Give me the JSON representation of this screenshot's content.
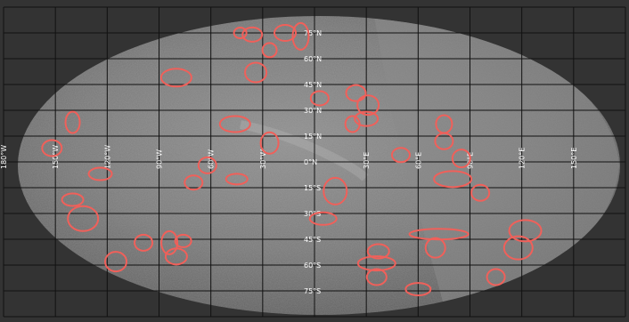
{
  "map": {
    "projection": "hammer-aitoff",
    "colors": {
      "background": "#333333",
      "grid": "#111111",
      "surface_dark": "#444444",
      "surface_mid": "#7a7a7a",
      "surface_light": "#aaaaaa",
      "circle": "#f0605a",
      "label": "#ffffff"
    },
    "lat_labels": [
      "75°N",
      "60°N",
      "45°N",
      "30°N",
      "15°N",
      "0°N",
      "15°S",
      "30°S",
      "45°S",
      "60°S",
      "75°S"
    ],
    "lon_labels": [
      "180°W",
      "150°W",
      "120°W",
      "90°W",
      "60°W",
      "30°W",
      "30°E",
      "60°E",
      "90°E",
      "120°E",
      "150°E"
    ],
    "features_count_label": "",
    "crater_markers": [
      {
        "lon": -43,
        "lat": 75
      },
      {
        "lon": -36,
        "lat": 74
      },
      {
        "lon": -17,
        "lat": 75
      },
      {
        "lon": -8,
        "lat": 73
      },
      {
        "lon": -26,
        "lat": 65
      },
      {
        "lon": -80,
        "lat": 49
      },
      {
        "lon": -34,
        "lat": 52
      },
      {
        "lon": 3,
        "lat": 37
      },
      {
        "lon": 24,
        "lat": 40
      },
      {
        "lon": 31,
        "lat": 33
      },
      {
        "lon": 30,
        "lat": 25
      },
      {
        "lon": 22,
        "lat": 22
      },
      {
        "lon": -46,
        "lat": 22
      },
      {
        "lon": -26,
        "lat": 11
      },
      {
        "lon": -140,
        "lat": 23
      },
      {
        "lon": -152,
        "lat": 8
      },
      {
        "lon": -124,
        "lat": -7
      },
      {
        "lon": -62,
        "lat": -2
      },
      {
        "lon": -70,
        "lat": -12
      },
      {
        "lon": -45,
        "lat": -10
      },
      {
        "lon": 12,
        "lat": -17
      },
      {
        "lon": 50,
        "lat": 4
      },
      {
        "lon": 75,
        "lat": 22
      },
      {
        "lon": 75,
        "lat": 12
      },
      {
        "lon": 85,
        "lat": 2
      },
      {
        "lon": 80,
        "lat": -10
      },
      {
        "lon": 96,
        "lat": -18
      },
      {
        "lon": -140,
        "lat": -22
      },
      {
        "lon": -134,
        "lat": -33
      },
      {
        "lon": -99,
        "lat": -47
      },
      {
        "lon": -84,
        "lat": -47
      },
      {
        "lon": -76,
        "lat": -46
      },
      {
        "lon": -80,
        "lat": -55
      },
      {
        "lon": -115,
        "lat": -58
      },
      {
        "lon": 5,
        "lat": -33
      },
      {
        "lon": 37,
        "lat": -52
      },
      {
        "lon": 36,
        "lat": -59
      },
      {
        "lon": 60,
        "lat": -74
      },
      {
        "lon": 36,
        "lat": -67
      },
      {
        "lon": 72,
        "lat": -42
      },
      {
        "lon": 70,
        "lat": -50
      },
      {
        "lon": 105,
        "lat": -67
      },
      {
        "lon": 122,
        "lat": -40
      },
      {
        "lon": 118,
        "lat": -50
      }
    ]
  }
}
